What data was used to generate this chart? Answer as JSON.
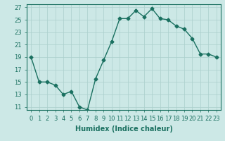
{
  "x": [
    0,
    1,
    2,
    3,
    4,
    5,
    6,
    7,
    8,
    9,
    10,
    11,
    12,
    13,
    14,
    15,
    16,
    17,
    18,
    19,
    20,
    21,
    22,
    23
  ],
  "y": [
    19,
    15,
    15,
    14.5,
    13,
    13.5,
    11,
    10.5,
    15.5,
    18.5,
    21.5,
    25.2,
    25.2,
    26.5,
    25.5,
    26.8,
    25.2,
    25,
    24,
    23.5,
    22,
    19.5,
    19.5,
    19
  ],
  "line_color": "#1a7060",
  "marker": "D",
  "markersize": 2.5,
  "bg_color": "#cce8e6",
  "grid_color": "#aacfcc",
  "ylim": [
    10.5,
    27.5
  ],
  "xlim": [
    -0.5,
    23.5
  ],
  "yticks": [
    11,
    13,
    15,
    17,
    19,
    21,
    23,
    25,
    27
  ],
  "xtick_labels": [
    "0",
    "1",
    "2",
    "3",
    "4",
    "5",
    "6",
    "7",
    "8",
    "9",
    "10",
    "11",
    "12",
    "13",
    "14",
    "15",
    "16",
    "17",
    "18",
    "19",
    "20",
    "21",
    "22",
    "23"
  ],
  "xlabel": "Humidex (Indice chaleur)",
  "xlabel_fontsize": 7,
  "tick_fontsize": 6,
  "line_width": 1.0
}
